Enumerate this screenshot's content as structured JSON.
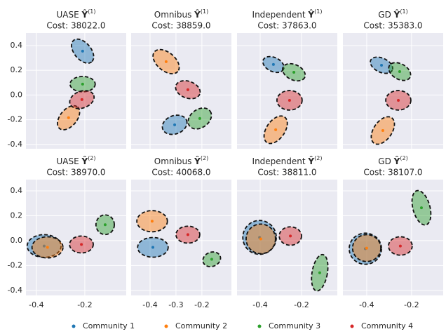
{
  "chart_data": [
    {
      "type": "ellipse-scatter",
      "method": "UASE",
      "symbol": "Ŷ",
      "superscript": "(1)",
      "cost": "Cost: 38022.0",
      "xlim": [
        -0.443,
        -0.029
      ],
      "ylim": [
        -0.435,
        0.502
      ],
      "xticks": [
        -0.4,
        -0.2
      ],
      "yticks": [
        -0.4,
        -0.2,
        {
          "value": 0,
          "label": "0.0"
        },
        0.2,
        0.4
      ],
      "series": [
        {
          "name": "Community 1",
          "color": "#1f77b4",
          "center_x": -0.209,
          "center_y": 0.355,
          "radius_x": 0.058,
          "radius_y": 0.068,
          "angle": 50
        },
        {
          "name": "Community 2",
          "color": "#ff7f0e",
          "center_x": -0.267,
          "center_y": -0.184,
          "radius_x": 0.058,
          "radius_y": 0.068,
          "angle": -50
        },
        {
          "name": "Community 3",
          "color": "#2ca02c",
          "center_x": -0.209,
          "center_y": 0.088,
          "radius_x": 0.052,
          "radius_y": 0.062,
          "angle": 0
        },
        {
          "name": "Community 4",
          "color": "#d62728",
          "center_x": -0.212,
          "center_y": -0.037,
          "radius_x": 0.052,
          "radius_y": 0.068,
          "angle": -20
        }
      ]
    },
    {
      "type": "ellipse-scatter",
      "method": "Omnibus",
      "symbol": "Ŷ",
      "superscript": "(1)",
      "cost": "Cost: 38859.0",
      "xlim": [
        -0.473,
        -0.086
      ],
      "ylim": [
        -0.435,
        0.502
      ],
      "xticks": [
        -0.4,
        -0.3,
        -0.2
      ],
      "yticks": [
        -0.4,
        -0.2,
        {
          "value": 0,
          "label": "0.0"
        },
        0.2,
        0.4
      ],
      "series": [
        {
          "name": "Community 1",
          "color": "#1f77b4",
          "center_x": -0.305,
          "center_y": -0.241,
          "radius_x": 0.049,
          "radius_y": 0.074,
          "angle": -20
        },
        {
          "name": "Community 2",
          "color": "#ff7f0e",
          "center_x": -0.338,
          "center_y": 0.27,
          "radius_x": 0.059,
          "radius_y": 0.074,
          "angle": 40
        },
        {
          "name": "Community 3",
          "color": "#2ca02c",
          "center_x": -0.208,
          "center_y": -0.19,
          "radius_x": 0.049,
          "radius_y": 0.074,
          "angle": -35
        },
        {
          "name": "Community 4",
          "color": "#d62728",
          "center_x": -0.254,
          "center_y": 0.043,
          "radius_x": 0.049,
          "radius_y": 0.068,
          "angle": 20
        }
      ]
    },
    {
      "type": "ellipse-scatter",
      "method": "Independent",
      "symbol": "Ŷ",
      "superscript": "(1)",
      "cost": "Cost: 37863.0",
      "xlim": [
        -0.512,
        -0.027
      ],
      "ylim": [
        -0.435,
        0.502
      ],
      "xticks": [
        -0.4,
        -0.2
      ],
      "yticks": [
        -0.4,
        -0.2,
        {
          "value": 0,
          "label": "0.0"
        },
        0.2,
        0.4
      ],
      "series": [
        {
          "name": "Community 1",
          "color": "#1f77b4",
          "center_x": -0.336,
          "center_y": 0.247,
          "radius_x": 0.054,
          "radius_y": 0.057,
          "angle": 25
        },
        {
          "name": "Community 2",
          "color": "#ff7f0e",
          "center_x": -0.325,
          "center_y": -0.281,
          "radius_x": 0.075,
          "radius_y": 0.074,
          "angle": -55
        },
        {
          "name": "Community 3",
          "color": "#2ca02c",
          "center_x": -0.237,
          "center_y": 0.184,
          "radius_x": 0.058,
          "radius_y": 0.062,
          "angle": 25
        },
        {
          "name": "Community 4",
          "color": "#d62728",
          "center_x": -0.258,
          "center_y": -0.043,
          "radius_x": 0.061,
          "radius_y": 0.079,
          "angle": 0
        }
      ]
    },
    {
      "type": "ellipse-scatter",
      "method": "GD",
      "symbol": "Ŷ",
      "superscript": "(1)",
      "cost": "Cost: 35383.0",
      "xlim": [
        -0.506,
        -0.059
      ],
      "ylim": [
        -0.435,
        0.502
      ],
      "xticks": [
        -0.4,
        -0.2
      ],
      "yticks": [
        -0.4,
        -0.2,
        {
          "value": 0,
          "label": "0.0"
        },
        0.2,
        0.4
      ],
      "series": [
        {
          "name": "Community 1",
          "color": "#1f77b4",
          "center_x": -0.334,
          "center_y": 0.241,
          "radius_x": 0.053,
          "radius_y": 0.057,
          "angle": 25
        },
        {
          "name": "Community 2",
          "color": "#ff7f0e",
          "center_x": -0.328,
          "center_y": -0.287,
          "radius_x": 0.069,
          "radius_y": 0.074,
          "angle": -55
        },
        {
          "name": "Community 3",
          "color": "#2ca02c",
          "center_x": -0.253,
          "center_y": 0.19,
          "radius_x": 0.053,
          "radius_y": 0.062,
          "angle": 30
        },
        {
          "name": "Community 4",
          "color": "#d62728",
          "center_x": -0.259,
          "center_y": -0.043,
          "radius_x": 0.056,
          "radius_y": 0.079,
          "angle": 0
        }
      ]
    },
    {
      "type": "ellipse-scatter",
      "method": "UASE",
      "symbol": "Ŷ",
      "superscript": "(2)",
      "cost": "Cost: 38970.0",
      "xlim": [
        -0.443,
        -0.029
      ],
      "ylim": [
        -0.44,
        0.49
      ],
      "xticks": [
        -0.4,
        -0.2
      ],
      "yticks": [
        -0.4,
        -0.2,
        {
          "value": 0,
          "label": "0.0"
        },
        0.2,
        0.4
      ],
      "series": [
        {
          "name": "Community 1",
          "color": "#1f77b4",
          "center_x": -0.368,
          "center_y": -0.043,
          "radius_x": 0.07,
          "radius_y": 0.091,
          "angle": 0
        },
        {
          "name": "Community 2",
          "color": "#ff7f0e",
          "center_x": -0.354,
          "center_y": -0.054,
          "radius_x": 0.064,
          "radius_y": 0.085,
          "angle": 0
        },
        {
          "name": "Community 3",
          "color": "#2ca02c",
          "center_x": -0.116,
          "center_y": 0.128,
          "radius_x": 0.038,
          "radius_y": 0.079,
          "angle": 0
        },
        {
          "name": "Community 4",
          "color": "#d62728",
          "center_x": -0.214,
          "center_y": -0.031,
          "radius_x": 0.049,
          "radius_y": 0.068,
          "angle": 0
        }
      ]
    },
    {
      "type": "ellipse-scatter",
      "method": "Omnibus",
      "symbol": "Ŷ",
      "superscript": "(2)",
      "cost": "Cost: 40068.0",
      "xlim": [
        -0.473,
        -0.086
      ],
      "ylim": [
        -0.44,
        0.49
      ],
      "xticks": [
        -0.4,
        -0.3,
        -0.2
      ],
      "yticks": [
        -0.4,
        -0.2,
        {
          "value": 0,
          "label": "0.0"
        },
        0.2,
        0.4
      ],
      "series": [
        {
          "name": "Community 1",
          "color": "#1f77b4",
          "center_x": -0.389,
          "center_y": -0.054,
          "radius_x": 0.059,
          "radius_y": 0.079,
          "angle": 0
        },
        {
          "name": "Community 2",
          "color": "#ff7f0e",
          "center_x": -0.392,
          "center_y": 0.156,
          "radius_x": 0.059,
          "radius_y": 0.085,
          "angle": 0
        },
        {
          "name": "Community 3",
          "color": "#2ca02c",
          "center_x": -0.162,
          "center_y": -0.15,
          "radius_x": 0.035,
          "radius_y": 0.057,
          "angle": -20
        },
        {
          "name": "Community 4",
          "color": "#d62728",
          "center_x": -0.254,
          "center_y": 0.048,
          "radius_x": 0.046,
          "radius_y": 0.068,
          "angle": 0
        }
      ]
    },
    {
      "type": "ellipse-scatter",
      "method": "Independent",
      "symbol": "Ŷ",
      "superscript": "(2)",
      "cost": "Cost: 38811.0",
      "xlim": [
        -0.512,
        -0.027
      ],
      "ylim": [
        -0.44,
        0.49
      ],
      "xticks": [
        -0.4,
        -0.2
      ],
      "yticks": [
        -0.4,
        -0.2,
        {
          "value": 0,
          "label": "0.0"
        },
        0.2,
        0.4
      ],
      "series": [
        {
          "name": "Community 1",
          "color": "#1f77b4",
          "center_x": -0.403,
          "center_y": 0.026,
          "radius_x": 0.081,
          "radius_y": 0.136,
          "angle": 0
        },
        {
          "name": "Community 2",
          "color": "#ff7f0e",
          "center_x": -0.397,
          "center_y": 0.014,
          "radius_x": 0.071,
          "radius_y": 0.119,
          "angle": 0
        },
        {
          "name": "Community 3",
          "color": "#2ca02c",
          "center_x": -0.112,
          "center_y": -0.258,
          "radius_x": 0.037,
          "radius_y": 0.148,
          "angle": 10
        },
        {
          "name": "Community 4",
          "color": "#d62728",
          "center_x": -0.254,
          "center_y": 0.037,
          "radius_x": 0.054,
          "radius_y": 0.074,
          "angle": 0
        }
      ]
    },
    {
      "type": "ellipse-scatter",
      "method": "GD",
      "symbol": "Ŷ",
      "superscript": "(2)",
      "cost": "Cost: 38107.0",
      "xlim": [
        -0.506,
        -0.059
      ],
      "ylim": [
        -0.44,
        0.49
      ],
      "xticks": [
        -0.4,
        -0.2
      ],
      "yticks": [
        -0.4,
        -0.2,
        {
          "value": 0,
          "label": "0.0"
        },
        0.2,
        0.4
      ],
      "series": [
        {
          "name": "Community 1",
          "color": "#1f77b4",
          "center_x": -0.406,
          "center_y": -0.065,
          "radius_x": 0.072,
          "radius_y": 0.125,
          "angle": 0
        },
        {
          "name": "Community 2",
          "color": "#ff7f0e",
          "center_x": -0.4,
          "center_y": -0.06,
          "radius_x": 0.063,
          "radius_y": 0.108,
          "angle": 0
        },
        {
          "name": "Community 3",
          "color": "#2ca02c",
          "center_x": -0.156,
          "center_y": 0.264,
          "radius_x": 0.038,
          "radius_y": 0.142,
          "angle": -15
        },
        {
          "name": "Community 4",
          "color": "#d62728",
          "center_x": -0.25,
          "center_y": -0.043,
          "radius_x": 0.053,
          "radius_y": 0.074,
          "angle": 0
        }
      ]
    }
  ]
}
